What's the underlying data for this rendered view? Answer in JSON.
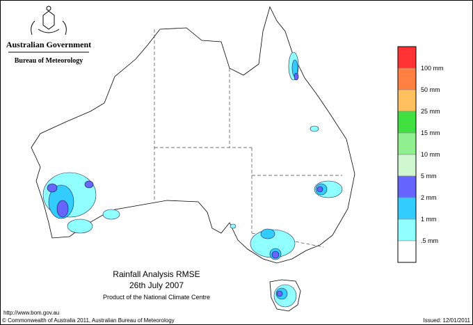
{
  "header": {
    "government": "Australian Government",
    "bureau": "Bureau of Meteorology"
  },
  "legend": {
    "colors": [
      "#ff3333",
      "#ff8040",
      "#ffc060",
      "#40e040",
      "#90f090",
      "#d0f8d0",
      "#6666ff",
      "#33ccff",
      "#90ffff",
      "#ffffff"
    ],
    "labels": [
      "100 mm",
      "50 mm",
      "25 mm",
      "15 mm",
      "10 mm",
      "5 mm",
      "2 mm",
      "1 mm",
      ".5 mm"
    ]
  },
  "caption": {
    "title": "Rainfall Analysis RMSE",
    "date": "26th  July  2007",
    "credit": "Product of the National Climate Centre"
  },
  "footer": {
    "url": "http://www.bom.gov.au",
    "copyright": "© Commonwealth of Australia 2011, Australian Bureau of Meteorology",
    "issued": "Issued: 12/01/2011"
  }
}
